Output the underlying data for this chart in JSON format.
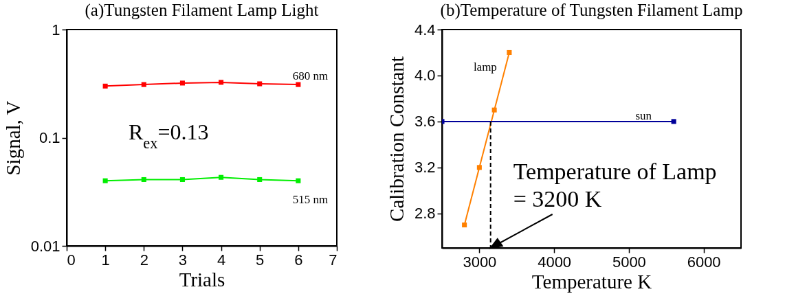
{
  "chart_data": [
    {
      "type": "line",
      "title": "(a)Tungsten Filament Lamp Light",
      "xlabel": "Trials",
      "ylabel": "Signal, V",
      "log": "y",
      "marker": "square",
      "x": [
        1,
        2,
        3,
        4,
        5,
        6
      ],
      "series": [
        {
          "name": "680 nm",
          "color": "#ff0000",
          "values": [
            0.3,
            0.31,
            0.32,
            0.325,
            0.315,
            0.31
          ]
        },
        {
          "name": "515 nm",
          "color": "#00ee00",
          "values": [
            0.04,
            0.041,
            0.041,
            0.043,
            0.041,
            0.04
          ]
        }
      ],
      "xlim": [
        0,
        7
      ],
      "xticks": [
        0,
        1,
        2,
        3,
        4,
        5,
        6,
        7
      ],
      "ylim": [
        0.01,
        1
      ],
      "yticks": [
        0.01,
        0.1,
        1
      ],
      "annotations": [
        "R$_{ex}$=0.13"
      ]
    },
    {
      "type": "line",
      "title": "(b)Temperature of Tungsten Filament Lamp",
      "xlabel": "Temperature K",
      "ylabel": "Calibration Constant",
      "marker": "square",
      "series": [
        {
          "name": "lamp",
          "color": "#ff8000",
          "x": [
            2800,
            3000,
            3200,
            3400
          ],
          "values": [
            2.7,
            3.2,
            3.7,
            4.2
          ]
        },
        {
          "name": "sun",
          "color": "#000099",
          "x": [
            2500,
            5600
          ],
          "values": [
            3.6,
            3.6
          ]
        },
        {
          "color": "#000000",
          "x": [
            3150,
            3150
          ],
          "values": [
            3.6,
            2.5
          ],
          "marker": "none",
          "line_style": "dashed"
        }
      ],
      "xlim": [
        2500,
        6500
      ],
      "xticks": [
        3000,
        4000,
        5000,
        6000
      ],
      "ylim": [
        2.5,
        4.4
      ],
      "yticks": [
        {
          "value": 2.8,
          "label": "2.8"
        },
        {
          "value": 3.2,
          "label": "3.2"
        },
        {
          "value": 3.6,
          "label": "3.6"
        },
        {
          "value": 4,
          "label": "4.0"
        },
        {
          "value": 4.4,
          "label": "4.4"
        }
      ],
      "annotations": [
        {
          "text": "Temperature of Lamp\n= 3200 K",
          "x": 3150,
          "y": 2.5
        }
      ]
    }
  ]
}
